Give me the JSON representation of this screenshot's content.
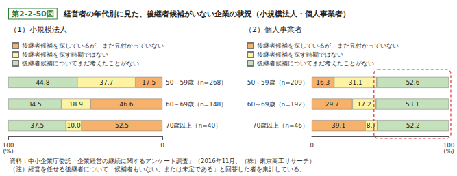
{
  "figure_label": "第2-2-50図",
  "title": "経営者の年代別に見た、後継者候補がいない企業の状況（小規模法人・個人事業者）",
  "notes": [
    "資料：中小企業庁委託「企業経営の継続に関するアンケート調査」（2016年11月、（株）東京商工リサーチ）",
    "（注）経営を任せる後継者について「候補者もいない、または未定である」と回答した者を集計している。"
  ],
  "chart_data": [
    {
      "type": "bar",
      "title": "（1）小規模法人",
      "orientation": "horizontal",
      "stacked": true,
      "data_labels": true,
      "grid": false,
      "x_label": "(%)",
      "xlim": [
        100,
        0
      ],
      "xticks": [
        0,
        100
      ],
      "categories": [
        "50～59歳（n=268）",
        "60～69歳（n=148）",
        "70歳以上（n=40）"
      ],
      "series": [
        {
          "name": "後継者候補を探しているが、まだ見付かっていない",
          "color": "#f6b26b",
          "values": [
            17.5,
            46.6,
            52.5
          ]
        },
        {
          "name": "後継者候補を探す時期ではない",
          "color": "#fdf3a3",
          "values": [
            37.7,
            18.9,
            10.0
          ],
          "value_labels": [
            "37.7",
            "18.9",
            "10.0"
          ]
        },
        {
          "name": "後継者候補についてまだ考えたことがない",
          "color": "#c5e1bb",
          "values": [
            44.8,
            34.5,
            37.5
          ]
        }
      ]
    },
    {
      "type": "bar",
      "title": "（2）個人事業者",
      "orientation": "horizontal",
      "stacked": true,
      "data_labels": true,
      "grid": false,
      "x_label": "(%)",
      "xlim": [
        0,
        100
      ],
      "xticks": [
        0,
        100
      ],
      "categories": [
        "50～59歳（n=209）",
        "60～69歳（n=192）",
        "70歳以上（n=46）"
      ],
      "series": [
        {
          "name": "後継者候補を探しているが、まだ見付かっていない",
          "color": "#f6b26b",
          "values": [
            16.3,
            29.7,
            39.1
          ]
        },
        {
          "name": "後継者候補を探す時期ではない",
          "color": "#fdf3a3",
          "values": [
            31.1,
            17.2,
            8.7
          ]
        },
        {
          "name": "後継者候補についてまだ考えたことがない",
          "color": "#c5e1bb",
          "values": [
            52.6,
            53.1,
            52.2
          ]
        }
      ]
    }
  ]
}
